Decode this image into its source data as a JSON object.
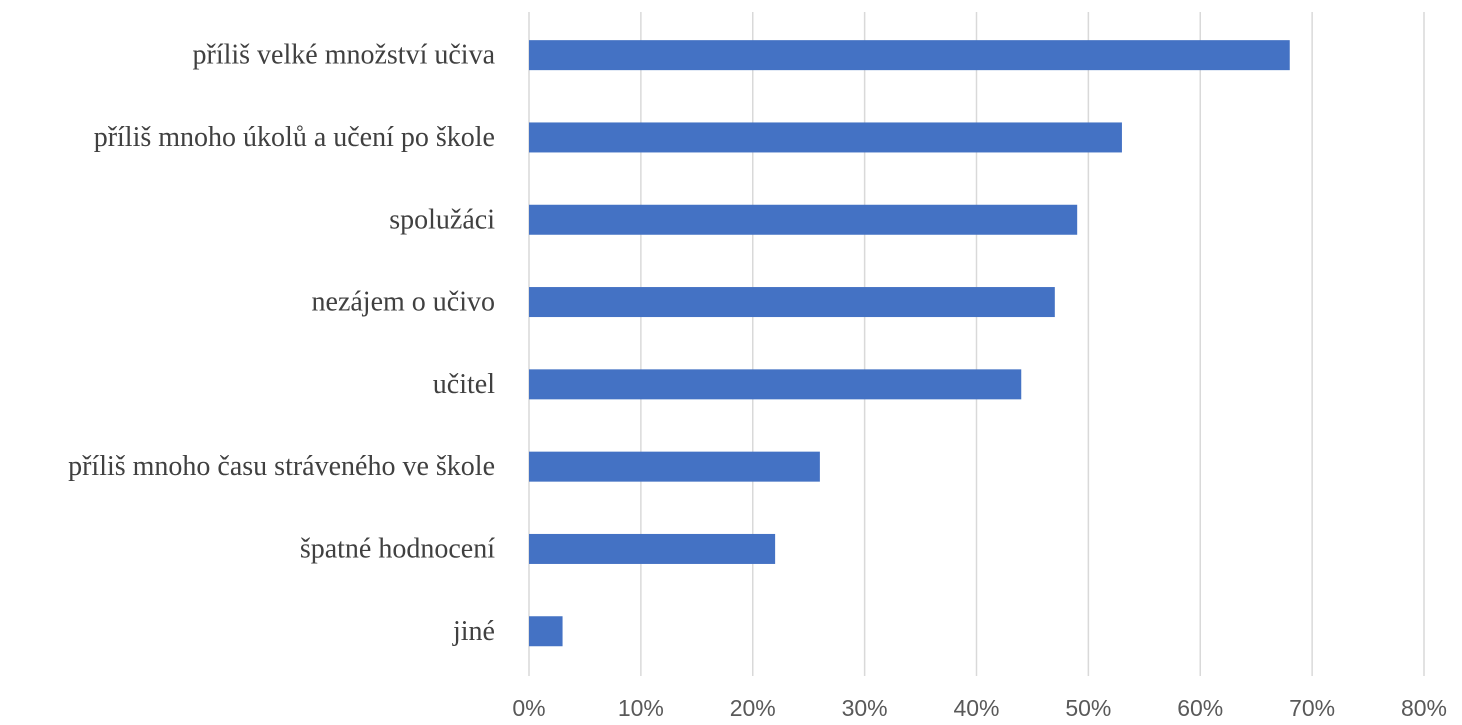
{
  "chart_data": {
    "type": "bar",
    "orientation": "horizontal",
    "categories": [
      "příliš velké množství učiva",
      "příliš mnoho úkolů a učení po škole",
      "spolužáci",
      "nezájem o učivo",
      "učitel",
      "příliš mnoho času stráveného ve škole",
      "špatné hodnocení",
      "jiné"
    ],
    "values": [
      68,
      53,
      49,
      47,
      44,
      26,
      22,
      3
    ],
    "value_unit": "%",
    "xlim": [
      0,
      80
    ],
    "x_ticks": [
      0,
      10,
      20,
      30,
      40,
      50,
      60,
      70,
      80
    ],
    "x_tick_labels": [
      "0%",
      "10%",
      "20%",
      "30%",
      "40%",
      "50%",
      "60%",
      "70%",
      "80%"
    ],
    "title": "",
    "xlabel": "",
    "ylabel": "",
    "grid": "vertical",
    "legend": "none",
    "bar_color": "#4472c4",
    "grid_color": "#d9d9d9"
  }
}
